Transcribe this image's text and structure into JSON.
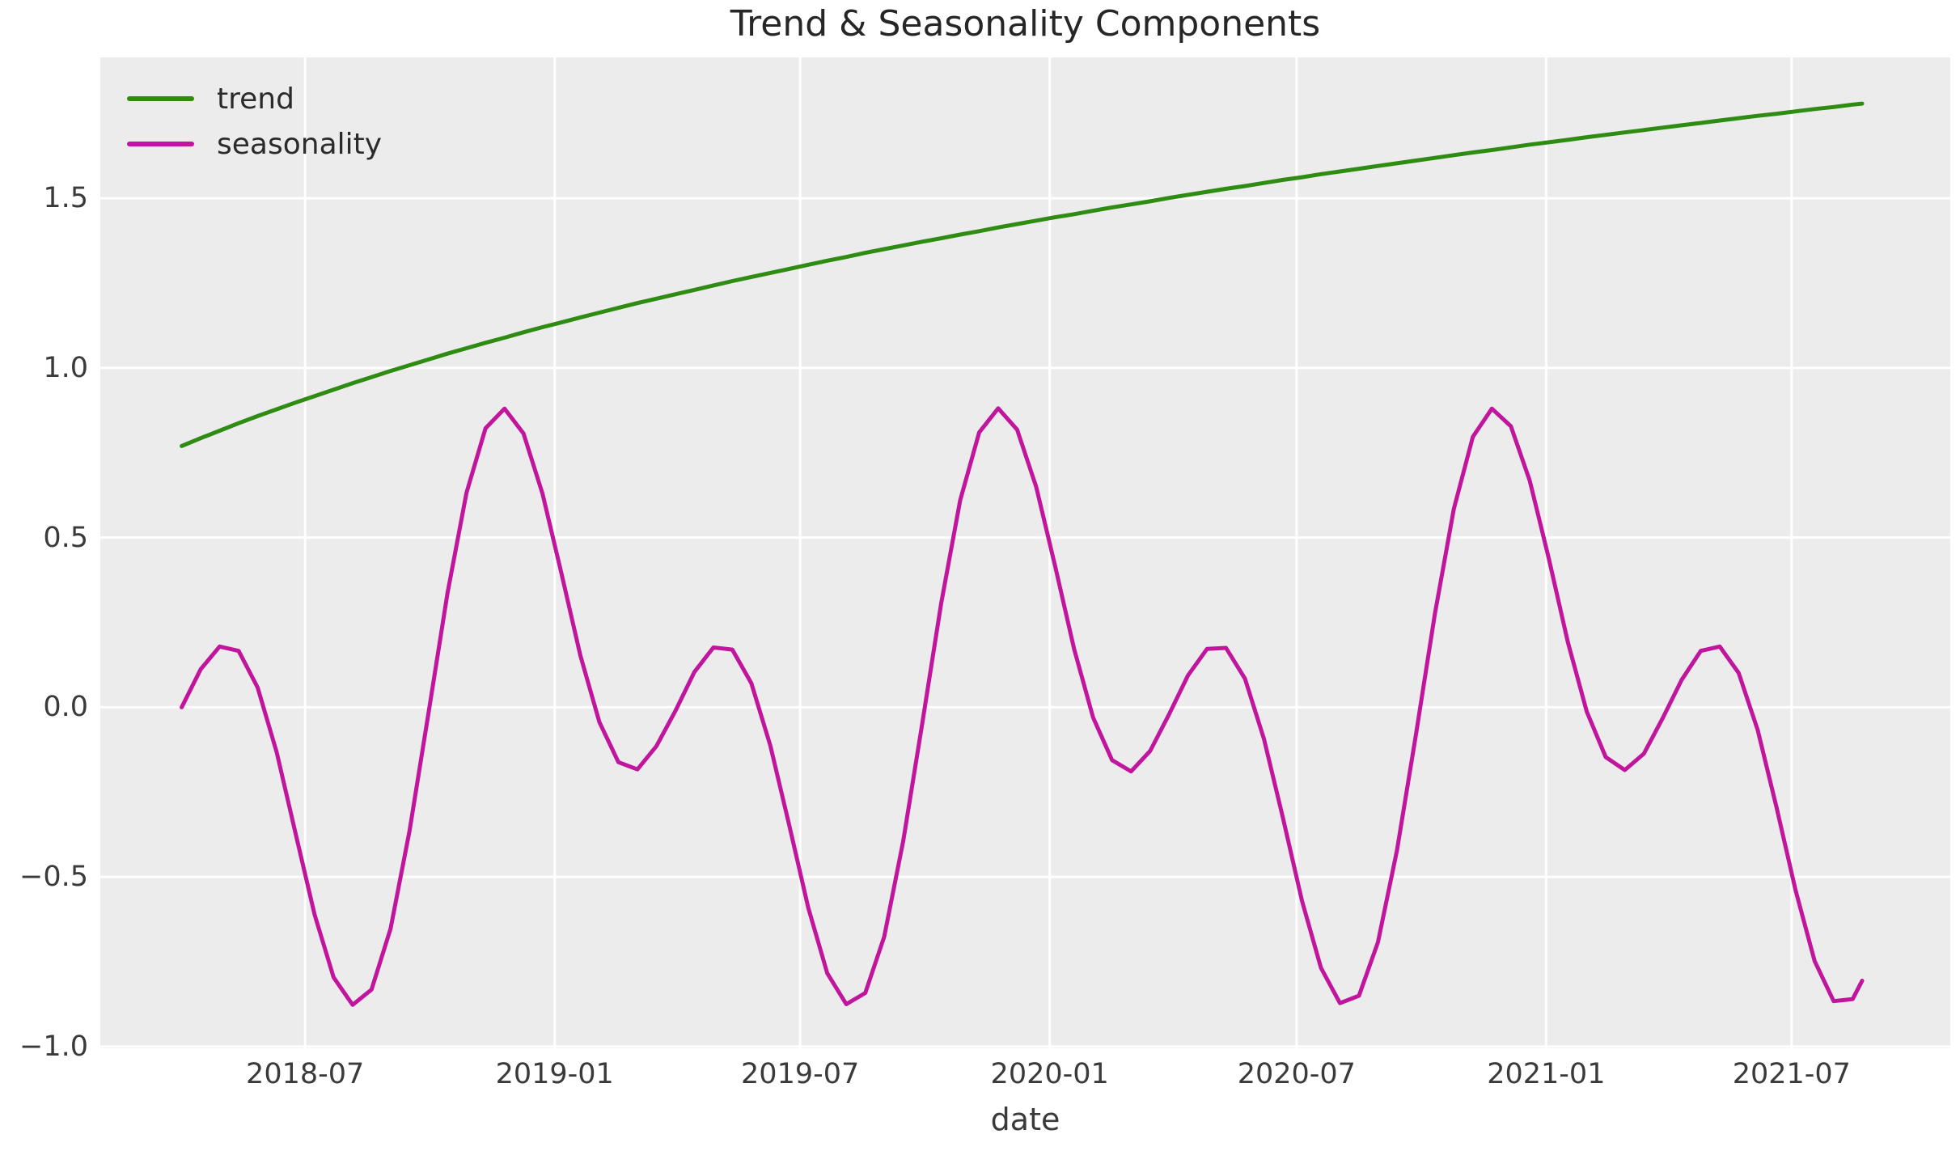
{
  "title": "Trend & Seasonality Components",
  "xlabel": "date",
  "colors": {
    "trend": "#2f8c12",
    "seasonality": "#c0159c",
    "plot_background": "#ececec",
    "gridline": "#ffffff",
    "title_text": "#262626",
    "tick_text": "#3a3a3a"
  },
  "legend": [
    {
      "label": "trend",
      "color": "#2f8c12"
    },
    {
      "label": "seasonality",
      "color": "#c0159c"
    }
  ],
  "axes": {
    "grid": true,
    "legend_position": "upper left",
    "ylim": [
      -1.005,
      1.915
    ],
    "xlim": [
      "2018-01-31",
      "2021-10-26"
    ],
    "y_ticks": [
      {
        "label": "1.5",
        "value": 1.5
      },
      {
        "label": "1.0",
        "value": 1.0
      },
      {
        "label": "0.5",
        "value": 0.5
      },
      {
        "label": "0.0",
        "value": 0.0
      },
      {
        "label": "−0.5",
        "value": -0.5
      },
      {
        "label": "−1.0",
        "value": -1.0
      }
    ],
    "x_ticks": [
      {
        "label": "2018-07",
        "date": "2018-07-01"
      },
      {
        "label": "2019-01",
        "date": "2019-01-01"
      },
      {
        "label": "2019-07",
        "date": "2019-07-01"
      },
      {
        "label": "2020-01",
        "date": "2020-01-01"
      },
      {
        "label": "2020-07",
        "date": "2020-07-01"
      },
      {
        "label": "2021-01",
        "date": "2021-01-01"
      },
      {
        "label": "2021-07",
        "date": "2021-07-01"
      }
    ]
  },
  "chart_data": {
    "type": "line",
    "title": "Trend & Seasonality Components",
    "xlabel": "date",
    "ylabel": "",
    "x_start": "2018-04-01",
    "x_day_offsets": [
      0,
      14,
      28,
      42,
      56,
      70,
      84,
      98,
      112,
      126,
      140,
      154,
      168,
      182,
      196,
      210,
      224,
      238,
      252,
      266,
      280,
      294,
      308,
      322,
      336,
      350,
      364,
      378,
      392,
      406,
      420,
      434,
      448,
      462,
      476,
      490,
      504,
      518,
      532,
      546,
      560,
      574,
      588,
      602,
      616,
      630,
      644,
      658,
      672,
      686,
      700,
      714,
      728,
      742,
      756,
      770,
      784,
      798,
      812,
      826,
      840,
      854,
      868,
      882,
      896,
      910,
      924,
      938,
      952,
      966,
      980,
      994,
      1008,
      1022,
      1036,
      1050,
      1064,
      1078,
      1092,
      1106,
      1120,
      1134,
      1148,
      1162,
      1176,
      1190,
      1204,
      1218,
      1232,
      1239
    ],
    "series": [
      {
        "name": "trend",
        "color": "#2f8c12",
        "values": [
          0.77,
          0.793,
          0.815,
          0.837,
          0.858,
          0.878,
          0.898,
          0.917,
          0.936,
          0.955,
          0.973,
          0.991,
          1.008,
          1.025,
          1.042,
          1.058,
          1.074,
          1.089,
          1.105,
          1.12,
          1.134,
          1.149,
          1.163,
          1.177,
          1.191,
          1.204,
          1.217,
          1.23,
          1.243,
          1.256,
          1.268,
          1.28,
          1.292,
          1.304,
          1.316,
          1.327,
          1.339,
          1.35,
          1.361,
          1.372,
          1.382,
          1.393,
          1.403,
          1.414,
          1.424,
          1.434,
          1.444,
          1.453,
          1.463,
          1.473,
          1.482,
          1.491,
          1.501,
          1.51,
          1.519,
          1.528,
          1.536,
          1.545,
          1.554,
          1.562,
          1.571,
          1.579,
          1.587,
          1.595,
          1.603,
          1.611,
          1.619,
          1.627,
          1.635,
          1.642,
          1.65,
          1.658,
          1.665,
          1.672,
          1.68,
          1.687,
          1.694,
          1.701,
          1.708,
          1.715,
          1.722,
          1.729,
          1.736,
          1.743,
          1.749,
          1.756,
          1.763,
          1.769,
          1.776,
          1.779
        ]
      },
      {
        "name": "seasonality",
        "color": "#c0159c",
        "values": [
          0.0,
          0.112,
          0.179,
          0.166,
          0.058,
          -0.132,
          -0.372,
          -0.611,
          -0.796,
          -0.877,
          -0.832,
          -0.653,
          -0.364,
          -0.016,
          0.336,
          0.632,
          0.822,
          0.88,
          0.807,
          0.63,
          0.394,
          0.152,
          -0.044,
          -0.162,
          -0.183,
          -0.115,
          -0.011,
          0.104,
          0.176,
          0.17,
          0.071,
          -0.113,
          -0.349,
          -0.591,
          -0.784,
          -0.875,
          -0.842,
          -0.676,
          -0.394,
          -0.048,
          0.306,
          0.61,
          0.81,
          0.881,
          0.818,
          0.65,
          0.416,
          0.171,
          -0.03,
          -0.156,
          -0.189,
          -0.129,
          -0.021,
          0.094,
          0.172,
          0.175,
          0.084,
          -0.094,
          -0.327,
          -0.57,
          -0.768,
          -0.872,
          -0.85,
          -0.693,
          -0.423,
          -0.081,
          0.276,
          0.585,
          0.797,
          0.88,
          0.828,
          0.667,
          0.438,
          0.192,
          -0.013,
          -0.147,
          -0.185,
          -0.137,
          -0.032,
          0.081,
          0.166,
          0.179,
          0.101,
          -0.067,
          -0.297,
          -0.541,
          -0.748,
          -0.866,
          -0.86,
          -0.806
        ]
      }
    ]
  }
}
